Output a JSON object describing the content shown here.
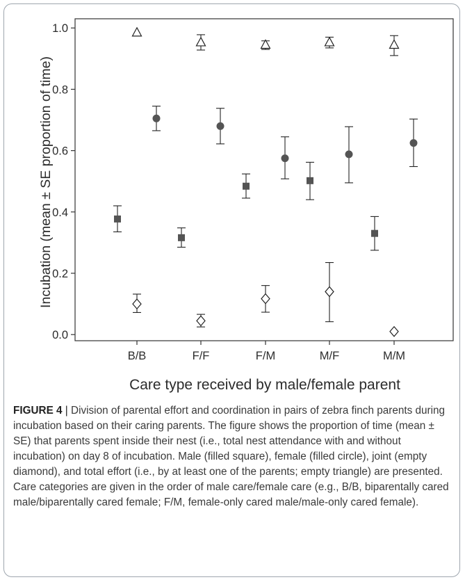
{
  "chart_data": {
    "type": "scatter",
    "xlabel": "Care type received by male/female parent",
    "ylabel": "Incubation (mean ± SE proportion of time)",
    "categories": [
      "B/B",
      "F/F",
      "F/M",
      "M/F",
      "M/M"
    ],
    "ylim": [
      -0.02,
      1.03
    ],
    "yticks": [
      0.0,
      0.2,
      0.4,
      0.6,
      0.8,
      1.0
    ],
    "ytick_labels": [
      "0.0",
      "0.2",
      "0.4",
      "0.6",
      "0.8",
      "1.0"
    ],
    "grid": false,
    "series": [
      {
        "key": "male",
        "marker": "filled-square",
        "values": [
          0.377,
          0.316,
          0.484,
          0.502,
          0.33
        ],
        "se_low": [
          0.335,
          0.285,
          0.445,
          0.44,
          0.275
        ],
        "se_high": [
          0.42,
          0.348,
          0.524,
          0.562,
          0.385
        ]
      },
      {
        "key": "female",
        "marker": "filled-circle",
        "values": [
          0.705,
          0.68,
          0.575,
          0.588,
          0.625
        ],
        "se_low": [
          0.665,
          0.622,
          0.508,
          0.495,
          0.548
        ],
        "se_high": [
          0.745,
          0.738,
          0.645,
          0.678,
          0.703
        ]
      },
      {
        "key": "joint",
        "marker": "empty-diamond",
        "values": [
          0.1,
          0.045,
          0.117,
          0.14,
          0.01
        ],
        "se_low": [
          0.072,
          0.025,
          0.073,
          0.042,
          null
        ],
        "se_high": [
          0.132,
          0.066,
          0.16,
          0.235,
          null
        ]
      },
      {
        "key": "total",
        "marker": "empty-triangle",
        "values": [
          0.985,
          0.953,
          0.945,
          0.953,
          0.945
        ],
        "se_low": [
          null,
          0.928,
          0.93,
          0.935,
          0.91
        ],
        "se_high": [
          null,
          0.978,
          0.958,
          0.97,
          0.975
        ]
      }
    ],
    "colors": {
      "filled": "#545454",
      "axis": "#333333",
      "text": "#2b2b2b"
    }
  },
  "caption": {
    "label": "FIGURE 4",
    "separator": "|",
    "text": "Division of parental effort and coordination in pairs of zebra finch parents during incubation based on their caring parents. The figure shows the proportion of time (mean ± SE) that parents spent inside their nest (i.e., total nest attendance with and without incubation) on day 8 of incubation. Male (filled square), female (filled circle), joint (empty diamond), and total effort (i.e., by at least one of the parents; empty triangle) are presented. Care categories are given in the order of male care/female care (e.g., B/B, biparentally cared male/biparentally cared female; F/M, female-only cared male/male-only cared female)."
  }
}
